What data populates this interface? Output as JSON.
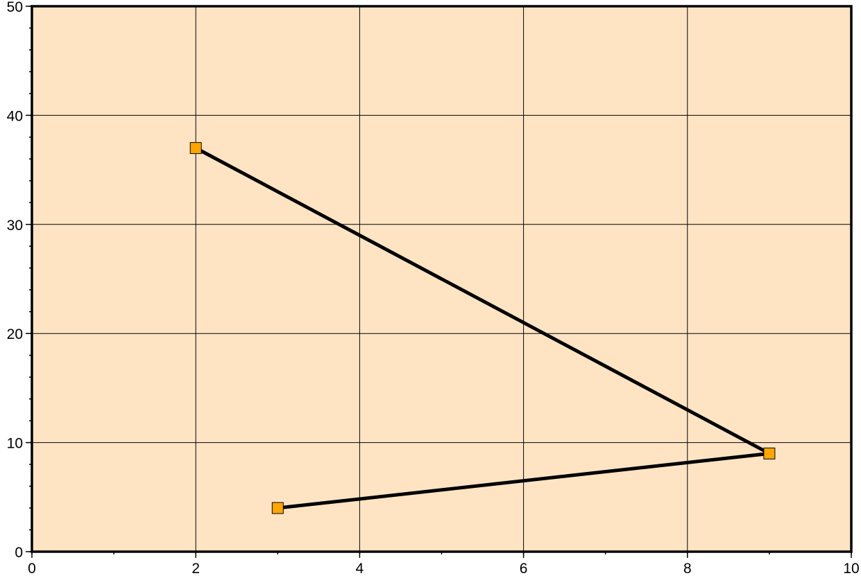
{
  "chart_data": {
    "type": "line",
    "title": "",
    "xlabel": "",
    "ylabel": "",
    "xlim": [
      0,
      10
    ],
    "ylim": [
      0,
      50
    ],
    "x_ticks": [
      "0",
      "2",
      "4",
      "6",
      "8",
      "10"
    ],
    "y_ticks": [
      "0",
      "10",
      "20",
      "30",
      "40",
      "50"
    ],
    "x_minor_step": 1,
    "y_minor_step": 2,
    "grid": true,
    "background_color": "#FFE4C4",
    "series": [
      {
        "x": [
          2,
          9,
          3
        ],
        "y": [
          37,
          9,
          4
        ],
        "line_color": "#000000",
        "marker": "square",
        "marker_color": "#FFA500"
      }
    ]
  }
}
